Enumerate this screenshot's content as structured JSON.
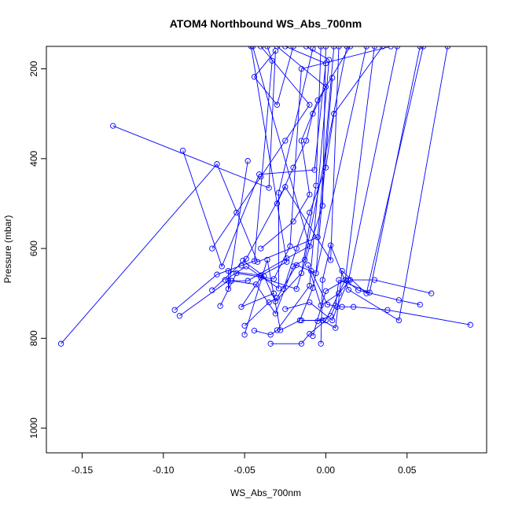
{
  "chart_data": {
    "type": "line",
    "title": "ATOM4 Northbound WS_Abs_700nm",
    "xlabel": "WS_Abs_700nm",
    "ylabel": "Pressure (mbar)",
    "xlim": [
      -0.172,
      0.099
    ],
    "ylim": [
      1055,
      150
    ],
    "y_inverted": true,
    "xticks": [
      -0.15,
      -0.1,
      -0.05,
      0.0,
      0.05
    ],
    "xtick_labels": [
      "-0.15",
      "-0.10",
      "-0.05",
      "0.00",
      "0.05"
    ],
    "yticks": [
      200,
      400,
      600,
      800,
      1000
    ],
    "ytick_labels": [
      "200",
      "400",
      "600",
      "800",
      "1000"
    ],
    "grid": false,
    "legend": "none",
    "series_color": "#0000ff",
    "marker": "open-circle",
    "series": [
      {
        "x": [
          -0.163,
          -0.067,
          -0.042,
          -0.005,
          0.005,
          0.01
        ],
        "y": [
          812,
          412,
          630,
          575,
          150,
          130
        ]
      },
      {
        "x": [
          -0.131,
          -0.035,
          -0.031,
          -0.044,
          -0.03,
          -0.02
        ],
        "y": [
          327,
          465,
          160,
          218,
          280,
          150
        ]
      },
      {
        "x": [
          -0.088,
          -0.064,
          -0.041,
          -0.007,
          0.0,
          -0.025
        ],
        "y": [
          382,
          640,
          435,
          425,
          188,
          150
        ]
      },
      {
        "x": [
          -0.093,
          -0.067,
          -0.052,
          -0.044,
          -0.033,
          -0.036
        ],
        "y": [
          737,
          658,
          638,
          628,
          182,
          150
        ]
      },
      {
        "x": [
          -0.09,
          -0.06,
          -0.048,
          -0.024,
          -0.01,
          -0.045
        ],
        "y": [
          750,
          672,
          672,
          622,
          595,
          150
        ]
      },
      {
        "x": [
          -0.07,
          -0.049,
          -0.025,
          0.003,
          0.008,
          0.02
        ],
        "y": [
          693,
          623,
          463,
          626,
          150,
          140
        ]
      },
      {
        "x": [
          -0.065,
          -0.055,
          -0.032,
          -0.022,
          -0.015,
          0.04
        ],
        "y": [
          728,
          655,
          668,
          595,
          200,
          150
        ]
      },
      {
        "x": [
          -0.062,
          -0.049,
          -0.029,
          -0.029,
          -0.008,
          -0.005
        ],
        "y": [
          670,
          640,
          689,
          476,
          155,
          130
        ]
      },
      {
        "x": [
          -0.058,
          -0.043,
          -0.031,
          -0.02,
          -0.013,
          0.013
        ],
        "y": [
          672,
          680,
          745,
          640,
          625,
          150
        ]
      },
      {
        "x": [
          -0.051,
          -0.038,
          -0.031,
          -0.015,
          -0.006,
          -0.003
        ],
        "y": [
          627,
          662,
          718,
          655,
          460,
          150
        ]
      },
      {
        "x": [
          -0.05,
          -0.035,
          -0.03,
          -0.018,
          -0.006,
          0.004
        ],
        "y": [
          772,
          720,
          710,
          637,
          655,
          220
        ]
      },
      {
        "x": [
          -0.05,
          -0.036,
          -0.028,
          -0.016,
          -0.008,
          0.025
        ],
        "y": [
          792,
          625,
          782,
          760,
          688,
          150
        ]
      },
      {
        "x": [
          -0.044,
          -0.034,
          -0.03,
          -0.01,
          0.002,
          -0.012
        ],
        "y": [
          783,
          792,
          782,
          683,
          180,
          150
        ]
      },
      {
        "x": [
          -0.034,
          -0.015,
          -0.01,
          0.0,
          0.012,
          0.03
        ],
        "y": [
          812,
          812,
          790,
          760,
          670,
          150
        ]
      },
      {
        "x": [
          -0.025,
          -0.01,
          0.004,
          0.007,
          0.014,
          0.044
        ],
        "y": [
          735,
          720,
          760,
          730,
          670,
          150
        ]
      },
      {
        "x": [
          -0.015,
          -0.002,
          0.006,
          0.01,
          0.025,
          0.06
        ],
        "y": [
          760,
          760,
          777,
          650,
          700,
          150
        ]
      },
      {
        "x": [
          -0.011,
          -0.003,
          0.008,
          0.015,
          0.03,
          0.065
        ],
        "y": [
          637,
          727,
          700,
          670,
          670,
          700
        ]
      },
      {
        "x": [
          -0.009,
          0.001,
          0.01,
          0.017,
          0.038,
          0.089
        ],
        "y": [
          650,
          725,
          730,
          730,
          737,
          770
        ]
      },
      {
        "x": [
          -0.008,
          0.0,
          0.012,
          0.02,
          0.045,
          0.058
        ],
        "y": [
          795,
          695,
          670,
          693,
          715,
          725
        ]
      },
      {
        "x": [
          -0.005,
          0.003,
          0.006,
          0.008,
          0.027,
          0.058
        ],
        "y": [
          762,
          750,
          727,
          670,
          698,
          150
        ]
      },
      {
        "x": [
          -0.003,
          -0.002,
          0.003,
          0.014,
          0.045,
          0.075
        ],
        "y": [
          812,
          670,
          593,
          692,
          760,
          150
        ]
      },
      {
        "x": [
          -0.048,
          -0.06,
          -0.06,
          -0.04,
          -0.024,
          -0.046
        ],
        "y": [
          405,
          690,
          650,
          660,
          630,
          150
        ]
      },
      {
        "x": [
          -0.032,
          -0.052,
          -0.04,
          -0.018,
          -0.002,
          0.0
        ],
        "y": [
          700,
          730,
          665,
          690,
          505,
          150
        ]
      },
      {
        "x": [
          -0.04,
          -0.02,
          -0.01,
          -0.015,
          -0.005,
          0.015
        ],
        "y": [
          600,
          540,
          480,
          360,
          270,
          150
        ]
      },
      {
        "x": [
          -0.03,
          -0.02,
          -0.012,
          -0.008,
          0.0,
          -0.03
        ],
        "y": [
          500,
          420,
          360,
          300,
          240,
          150
        ]
      },
      {
        "x": [
          -0.07,
          -0.055,
          -0.04,
          -0.025,
          -0.01,
          -0.04
        ],
        "y": [
          600,
          520,
          440,
          360,
          280,
          150
        ]
      },
      {
        "x": [
          -0.026,
          -0.018,
          -0.01,
          0.0,
          0.005,
          0.035
        ],
        "y": [
          690,
          600,
          520,
          420,
          300,
          150
        ]
      }
    ]
  }
}
